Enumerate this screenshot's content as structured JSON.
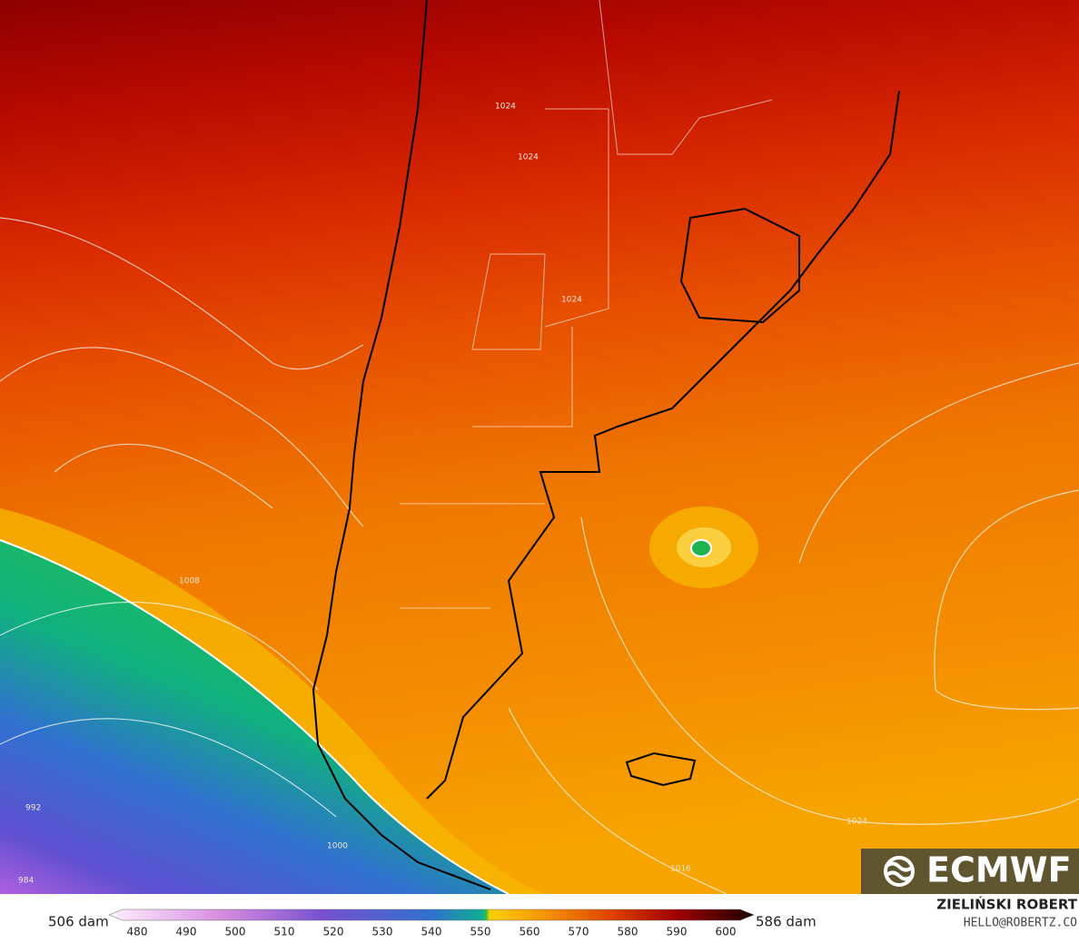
{
  "map": {
    "contour_labels": [
      "1024",
      "1024",
      "1024",
      "1008",
      "992",
      "1000",
      "984",
      "1016",
      "1024"
    ]
  },
  "colorbar": {
    "min_label": "506 dam",
    "max_label": "586 dam",
    "ticks": [
      480,
      490,
      500,
      510,
      520,
      530,
      540,
      550,
      560,
      570,
      580,
      590,
      600
    ]
  },
  "logo": "ECMWF",
  "credit": {
    "name": "ZIELIŃSKI ROBERT",
    "email": "HELLO@ROBERTZ.CO"
  }
}
